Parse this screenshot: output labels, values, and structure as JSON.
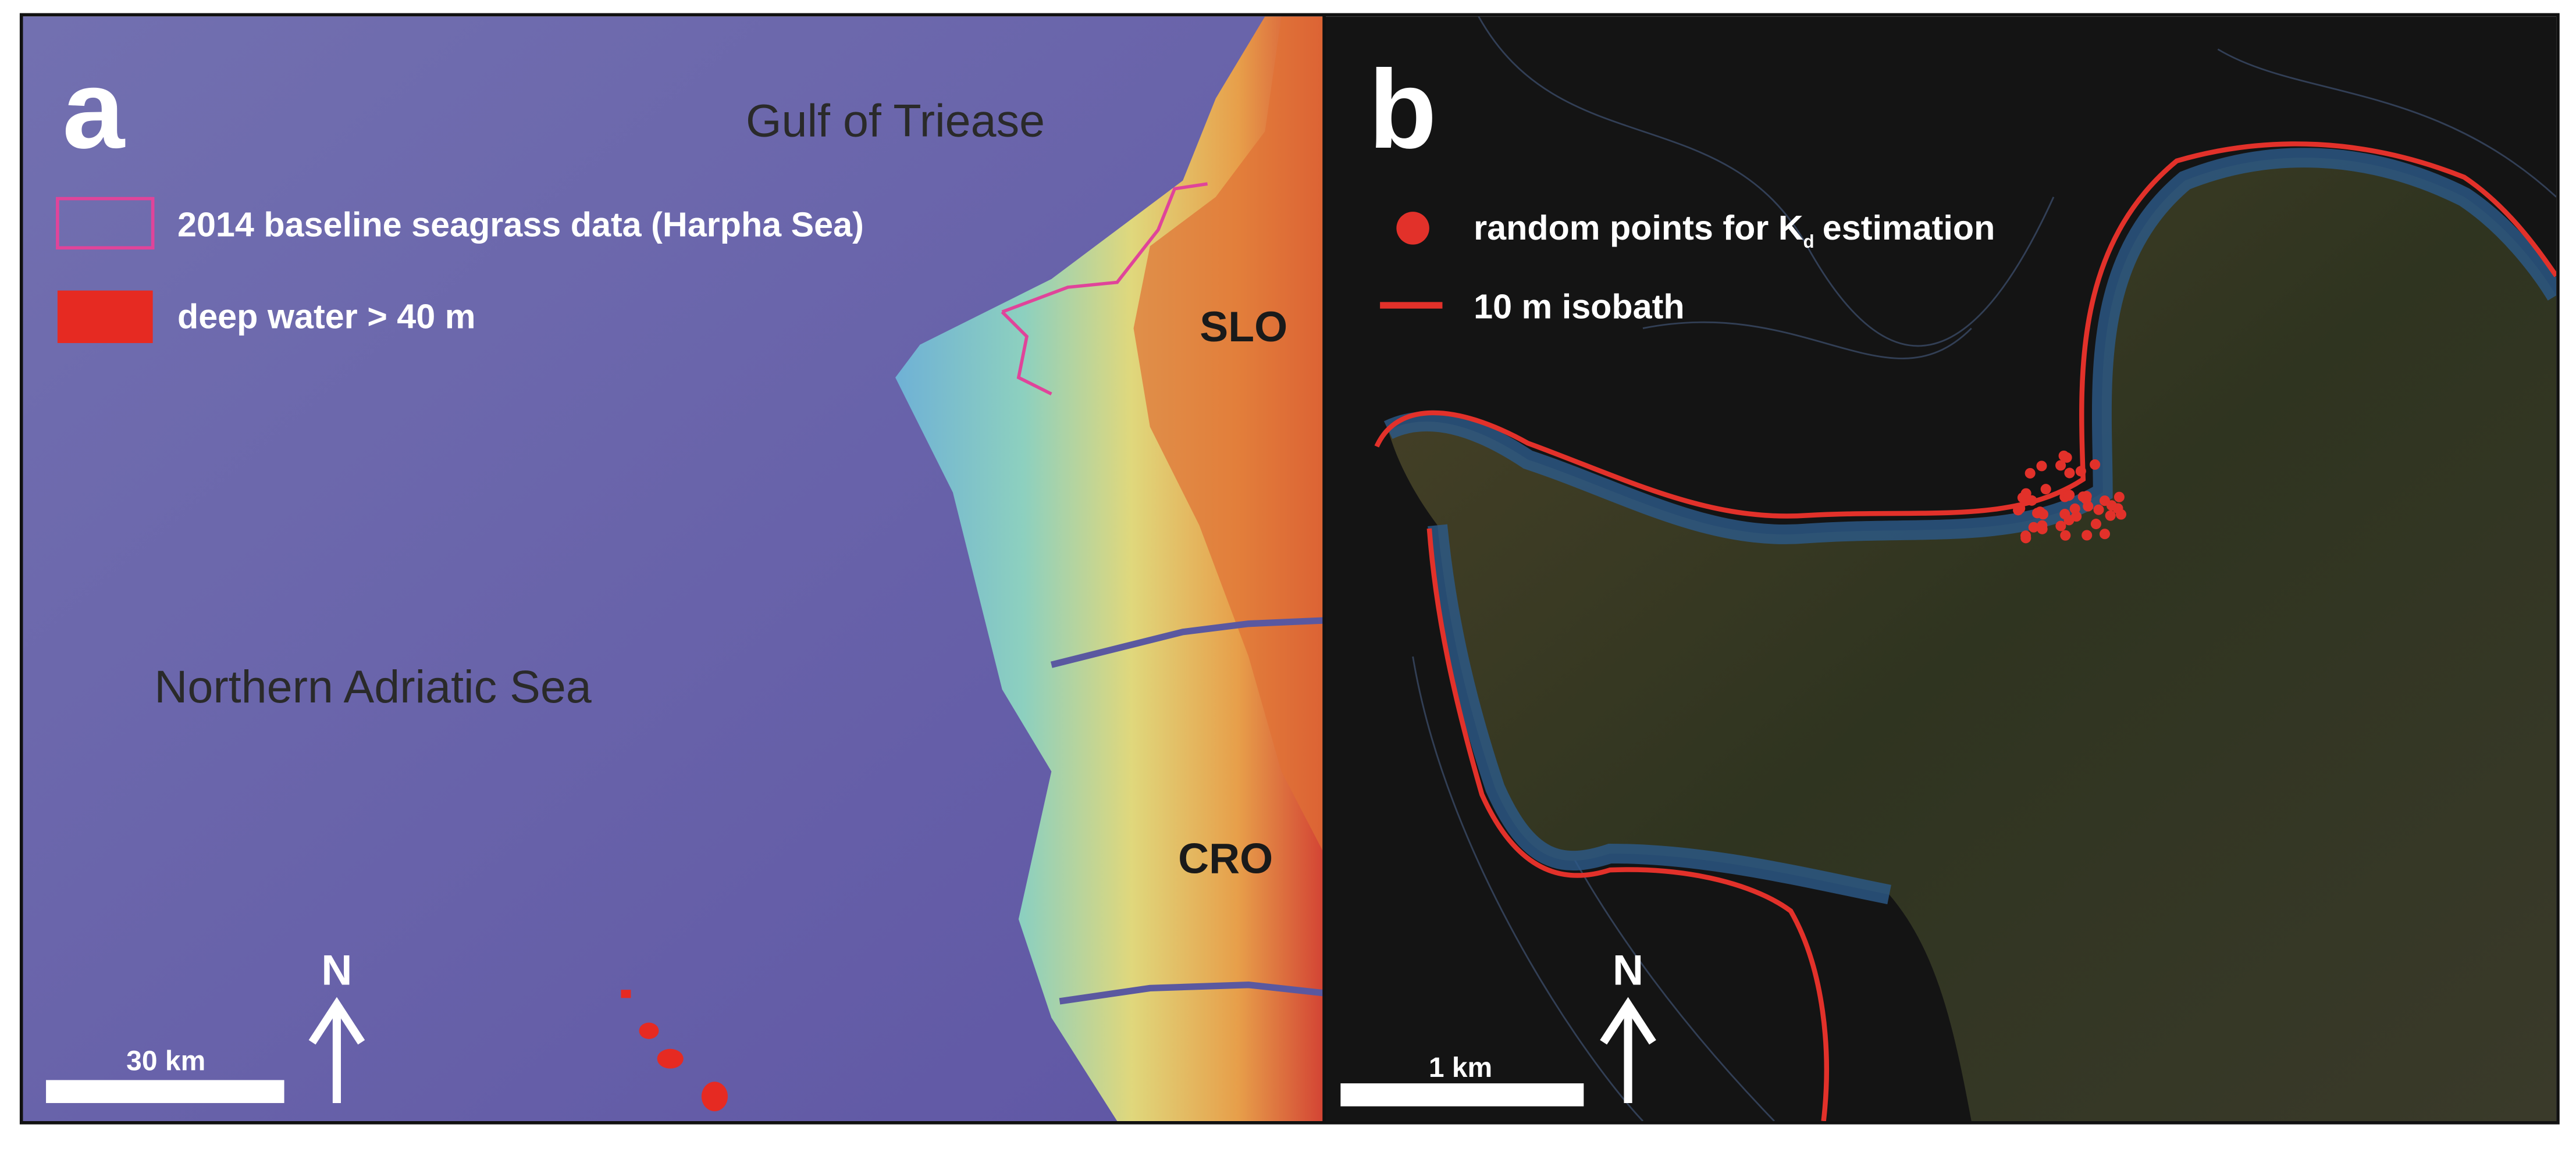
{
  "panels": [
    {
      "label": "a",
      "title": "Gulf of Triease",
      "legend": [
        {
          "label": "2014 baseline seagrass data (Harpha Sea)"
        },
        {
          "label": "deep water > 40 m"
        }
      ],
      "places": [
        "SLO",
        "CRO",
        "Northern Adriatic Sea"
      ],
      "north": "N",
      "scale": "30 km"
    },
    {
      "label": "b",
      "legend": [
        {
          "label_parts": [
            "random points for K",
            "d",
            "estimation"
          ]
        },
        {
          "label": "10 m isobath"
        }
      ],
      "north": "N",
      "scale": "1 km"
    }
  ]
}
